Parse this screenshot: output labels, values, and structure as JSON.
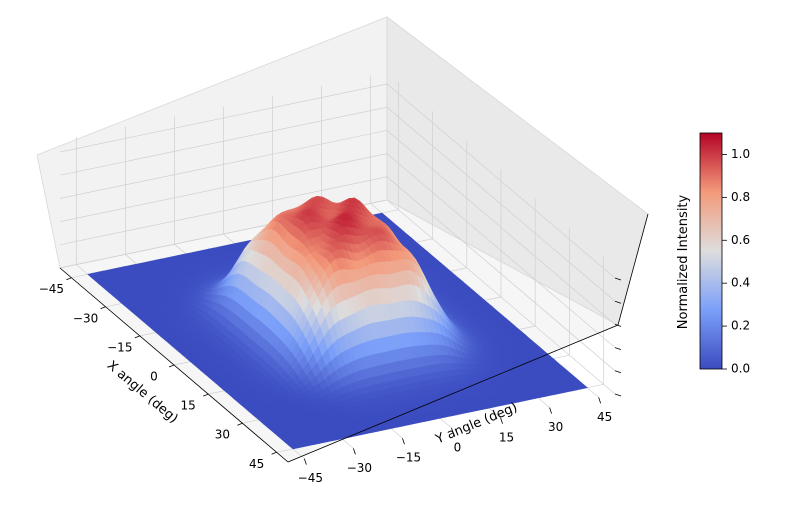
{
  "chart_data": {
    "type": "surface3d",
    "title": "",
    "xlabel": "X angle (deg)",
    "ylabel": "Y angle (deg)",
    "zlabel": "",
    "x_ticks": [
      "−45",
      "−30",
      "−15",
      "0",
      "15",
      "30",
      "45"
    ],
    "y_ticks": [
      "−45",
      "−30",
      "−15",
      "0",
      "15",
      "30",
      "45"
    ],
    "xlim": [
      -50,
      50
    ],
    "ylim": [
      -50,
      50
    ],
    "zlim": [
      0,
      1.1
    ],
    "colormap": "coolwarm",
    "colorbar": {
      "label": "Normalized Intensity",
      "ticks": [
        "0.0",
        "0.2",
        "0.4",
        "0.6",
        "0.8",
        "1.0"
      ],
      "tick_values": [
        0.0,
        0.2,
        0.4,
        0.6,
        0.8,
        1.0
      ],
      "range": [
        0,
        1.1
      ]
    },
    "surface": {
      "shape": "flat-top plateau",
      "plateau_x_range": [
        -20,
        20
      ],
      "plateau_y_range": [
        -20,
        20
      ],
      "plateau_value": 1.0,
      "background_value": 0.0
    },
    "grid": true
  }
}
